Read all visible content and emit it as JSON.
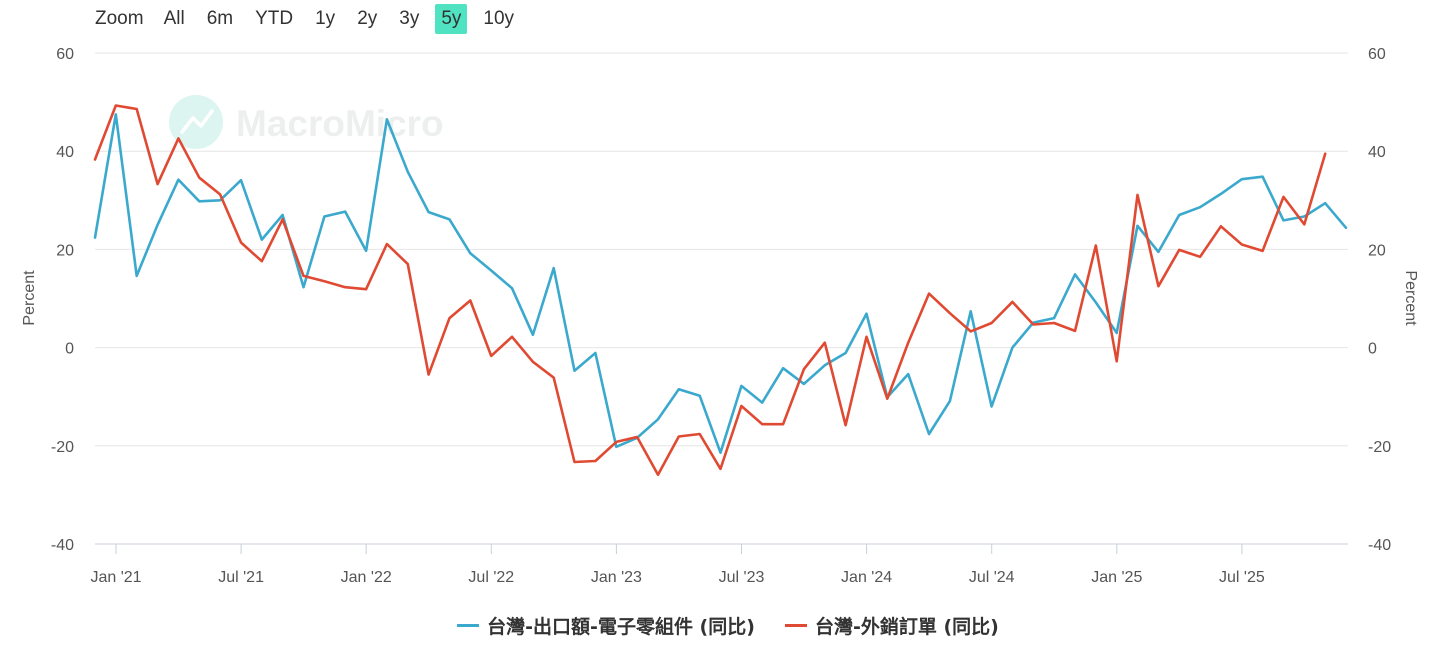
{
  "zoom": {
    "label": "Zoom",
    "options": [
      "All",
      "6m",
      "YTD",
      "1y",
      "2y",
      "3y",
      "5y",
      "10y"
    ],
    "selected": "5y"
  },
  "watermark": "MacroMicro",
  "chart_data": {
    "type": "line",
    "x_ticks": [
      "Jan '21",
      "Jul '21",
      "Jan '22",
      "Jul '22",
      "Jan '23",
      "Jul '23",
      "Jan '24",
      "Jul '24",
      "Jan '25",
      "Jul '25"
    ],
    "y_left": {
      "label": "Percent",
      "ticks": [
        "60",
        "40",
        "20",
        "0",
        "-20",
        "-40"
      ],
      "range": [
        -40,
        60
      ]
    },
    "y_right": {
      "label": "Percent",
      "ticks": [
        "60",
        "40",
        "20",
        "0",
        "-20",
        "-40"
      ],
      "range": [
        -40,
        60
      ]
    },
    "grid": true,
    "legend_position": "bottom",
    "x_start": "2020-12",
    "series": [
      {
        "name": "台灣-出口額-電子零組件 (同比)",
        "color": "#3aa9cd",
        "values": [
          22.4,
          47.5,
          14.6,
          25.0,
          34.2,
          29.8,
          30.0,
          34.1,
          22.0,
          27.0,
          12.3,
          26.7,
          27.7,
          19.7,
          46.5,
          35.8,
          27.6,
          26.1,
          19.2,
          15.7,
          12.1,
          2.6,
          16.2,
          -4.7,
          -1.1,
          -20.2,
          -18.4,
          -14.6,
          -8.5,
          -9.8,
          -21.4,
          -7.8,
          -11.2,
          -4.2,
          -7.4,
          -3.6,
          -1.1,
          6.9,
          -10.1,
          -5.4,
          -17.6,
          -10.9,
          7.4,
          -12.0,
          0.0,
          5.1,
          6.0,
          14.9,
          9.2,
          3.0,
          24.8,
          19.5,
          27.0,
          28.6,
          31.3,
          34.3,
          34.8,
          25.9,
          26.7,
          29.4,
          24.4
        ]
      },
      {
        "name": "台灣-外銷訂單 (同比)",
        "color": "#e04a32",
        "values": [
          38.3,
          49.3,
          48.6,
          33.3,
          42.6,
          34.6,
          31.2,
          21.4,
          17.6,
          26.1,
          14.6,
          13.5,
          12.3,
          11.9,
          21.1,
          17.0,
          -5.5,
          6.0,
          9.6,
          -1.7,
          2.2,
          -2.9,
          -6.1,
          -23.3,
          -23.1,
          -19.2,
          -18.2,
          -25.9,
          -18.1,
          -17.6,
          -24.7,
          -11.9,
          -15.6,
          -15.6,
          -4.4,
          1.0,
          -15.8,
          2.2,
          -10.4,
          1.0,
          11.0,
          7.0,
          3.3,
          5.0,
          9.3,
          4.7,
          5.0,
          3.4,
          20.8,
          -2.8,
          31.1,
          12.5,
          19.9,
          18.5,
          24.7,
          21.0,
          19.7,
          30.7,
          25.1,
          39.5
        ]
      }
    ]
  }
}
